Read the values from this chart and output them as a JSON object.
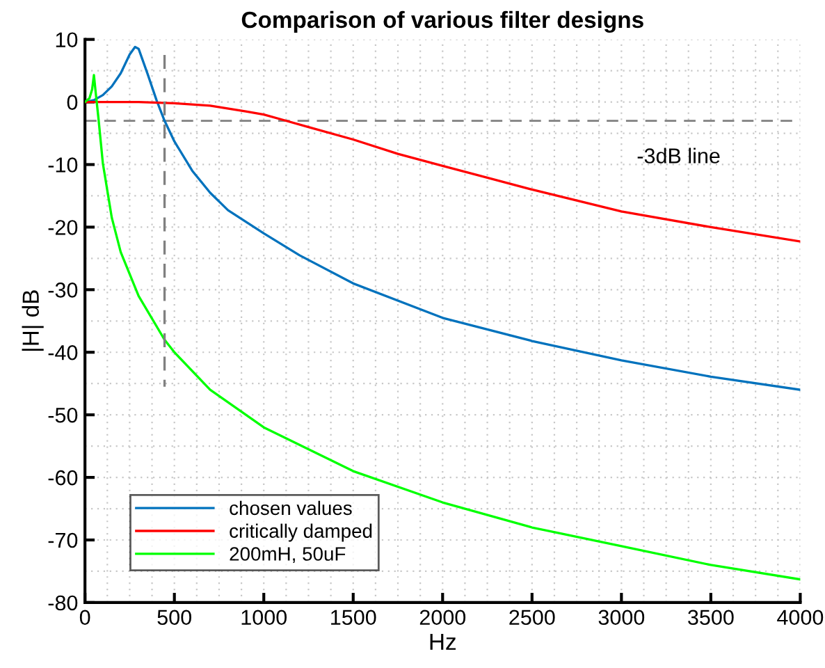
{
  "chart_data": {
    "type": "line",
    "title": "Comparison of various filter designs",
    "xlabel": "Hz",
    "ylabel": "|H| dB",
    "xlim": [
      0,
      4000
    ],
    "xticks": [
      0,
      500,
      1000,
      1500,
      2000,
      2500,
      3000,
      3500,
      4000
    ],
    "ylim": [
      -80,
      10
    ],
    "yticks": [
      -80,
      -70,
      -60,
      -50,
      -40,
      -30,
      -20,
      -10,
      0,
      10
    ],
    "grid": true,
    "legend": "bottom left",
    "marker": "none",
    "line_style": "solid",
    "ref_lines": [
      {
        "axis": "y",
        "value": -3,
        "label": "-3dB line",
        "color": "#808080",
        "line_style": "dashed"
      }
    ],
    "series": [
      {
        "name": "chosen values",
        "color": "#0072bd",
        "x": [
          0,
          50,
          100,
          150,
          200,
          250,
          280,
          300,
          350,
          400,
          445,
          500,
          600,
          700,
          800,
          1000,
          1200,
          1500,
          2000,
          2500,
          3000,
          3500,
          4000
        ],
        "values": [
          0,
          0.3,
          1.1,
          2.5,
          4.6,
          7.6,
          8.8,
          8.5,
          4.5,
          0.3,
          -3,
          -6.3,
          -11,
          -14.5,
          -17.3,
          -21,
          -24.5,
          -29,
          -34.5,
          -38.2,
          -41.3,
          -43.9,
          -46
        ]
      },
      {
        "name": "critically damped",
        "color": "#ff0000",
        "x": [
          0,
          300,
          500,
          700,
          900,
          1000,
          1100,
          1250,
          1500,
          1750,
          2000,
          2500,
          3000,
          3500,
          4000
        ],
        "values": [
          0,
          0,
          -0.2,
          -0.6,
          -1.5,
          -2,
          -2.8,
          -4,
          -6,
          -8.3,
          -10.2,
          -14,
          -17.5,
          -20,
          -22.3
        ]
      },
      {
        "name": "200mH, 50uF",
        "color": "#00ff00",
        "x": [
          0,
          25,
          40,
          50,
          60,
          75,
          100,
          150,
          200,
          300,
          445,
          500,
          700,
          1000,
          1500,
          2000,
          2500,
          3000,
          3500,
          4000
        ],
        "values": [
          0,
          0.6,
          2,
          4.3,
          1.5,
          -2.5,
          -9.8,
          -18.5,
          -24,
          -31,
          -38,
          -40,
          -46,
          -52,
          -59,
          -64,
          -68,
          -71,
          -74,
          -76.3
        ]
      },
      {
        "color": "#808080",
        "line_style": "dashed",
        "x": [
          445,
          445
        ],
        "values": [
          7.5,
          -45.5
        ]
      }
    ]
  }
}
